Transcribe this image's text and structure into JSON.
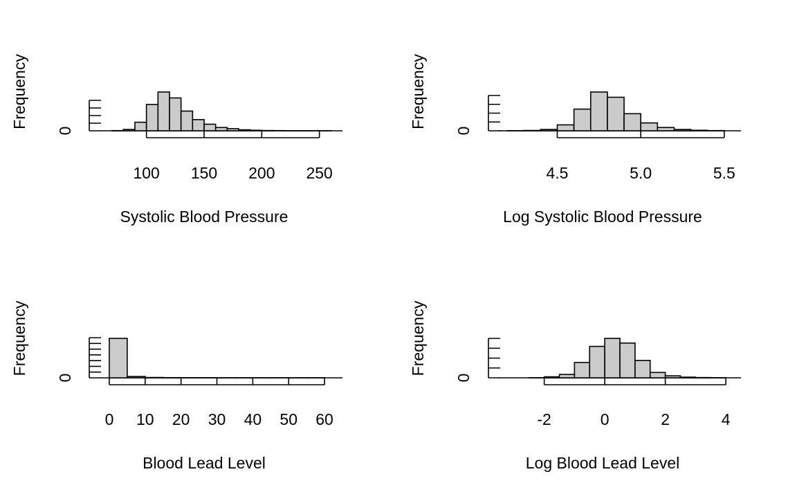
{
  "colors": {
    "bar_fill": "#cbcbcb",
    "bar_stroke": "#000000",
    "background": "#ffffff"
  },
  "chart_data": [
    {
      "type": "bar",
      "xlabel": "Systolic Blood Pressure",
      "ylabel": "Frequency",
      "xlim": [
        60,
        270
      ],
      "ylim": [
        0,
        60
      ],
      "x_ticks": [
        100,
        150,
        200,
        250
      ],
      "x_tick_labels": [
        "100",
        "150",
        "200",
        "250"
      ],
      "y_tick_labels": [
        "0"
      ],
      "y_minor_ticks": 4,
      "bins": [
        {
          "x0": 70,
          "x1": 80,
          "count": 0.3
        },
        {
          "x0": 80,
          "x1": 90,
          "count": 2
        },
        {
          "x0": 90,
          "x1": 100,
          "count": 13
        },
        {
          "x0": 100,
          "x1": 110,
          "count": 40
        },
        {
          "x0": 110,
          "x1": 120,
          "count": 59
        },
        {
          "x0": 120,
          "x1": 130,
          "count": 50
        },
        {
          "x0": 130,
          "x1": 140,
          "count": 30
        },
        {
          "x0": 140,
          "x1": 150,
          "count": 17
        },
        {
          "x0": 150,
          "x1": 160,
          "count": 10
        },
        {
          "x0": 160,
          "x1": 170,
          "count": 5
        },
        {
          "x0": 170,
          "x1": 180,
          "count": 3.2
        },
        {
          "x0": 180,
          "x1": 190,
          "count": 1.5
        },
        {
          "x0": 190,
          "x1": 200,
          "count": 0.8
        },
        {
          "x0": 200,
          "x1": 210,
          "count": 0.4
        },
        {
          "x0": 210,
          "x1": 220,
          "count": 0.3
        },
        {
          "x0": 220,
          "x1": 230,
          "count": 0.2
        },
        {
          "x0": 230,
          "x1": 240,
          "count": 0.2
        },
        {
          "x0": 240,
          "x1": 250,
          "count": 0.1
        },
        {
          "x0": 250,
          "x1": 260,
          "count": 0.1
        }
      ]
    },
    {
      "type": "bar",
      "xlabel": "Log Systolic Blood Pressure",
      "ylabel": "Frequency",
      "xlim": [
        4.15,
        5.6
      ],
      "ylim": [
        0,
        60
      ],
      "x_ticks": [
        4.5,
        5.0,
        5.5
      ],
      "x_tick_labels": [
        "4.5",
        "5.0",
        "5.5"
      ],
      "y_tick_labels": [
        "0"
      ],
      "y_minor_ticks": 4,
      "bins": [
        {
          "x0": 4.2,
          "x1": 4.3,
          "count": 0.2
        },
        {
          "x0": 4.3,
          "x1": 4.4,
          "count": 0.5
        },
        {
          "x0": 4.4,
          "x1": 4.5,
          "count": 2
        },
        {
          "x0": 4.5,
          "x1": 4.6,
          "count": 9
        },
        {
          "x0": 4.6,
          "x1": 4.7,
          "count": 33
        },
        {
          "x0": 4.7,
          "x1": 4.8,
          "count": 59
        },
        {
          "x0": 4.8,
          "x1": 4.9,
          "count": 51
        },
        {
          "x0": 4.9,
          "x1": 5.0,
          "count": 26
        },
        {
          "x0": 5.0,
          "x1": 5.1,
          "count": 12
        },
        {
          "x0": 5.1,
          "x1": 5.2,
          "count": 5
        },
        {
          "x0": 5.2,
          "x1": 5.3,
          "count": 2
        },
        {
          "x0": 5.3,
          "x1": 5.4,
          "count": 0.8
        },
        {
          "x0": 5.4,
          "x1": 5.5,
          "count": 0.3
        }
      ]
    },
    {
      "type": "bar",
      "xlabel": "Blood Lead Level",
      "ylabel": "Frequency",
      "xlim": [
        -2.5,
        65
      ],
      "ylim": [
        0,
        60
      ],
      "x_ticks": [
        0,
        10,
        20,
        30,
        40,
        50,
        60
      ],
      "x_tick_labels": [
        "0",
        "10",
        "20",
        "30",
        "40",
        "50",
        "60"
      ],
      "y_tick_labels": [
        "0"
      ],
      "y_minor_ticks": 7,
      "bins": [
        {
          "x0": 0,
          "x1": 5,
          "count": 59
        },
        {
          "x0": 5,
          "x1": 10,
          "count": 2
        },
        {
          "x0": 10,
          "x1": 15,
          "count": 0.5
        },
        {
          "x0": 15,
          "x1": 20,
          "count": 0.3
        },
        {
          "x0": 20,
          "x1": 25,
          "count": 0.2
        },
        {
          "x0": 25,
          "x1": 30,
          "count": 0.2
        },
        {
          "x0": 30,
          "x1": 35,
          "count": 0.1
        },
        {
          "x0": 35,
          "x1": 40,
          "count": 0.1
        },
        {
          "x0": 40,
          "x1": 45,
          "count": 0.1
        },
        {
          "x0": 45,
          "x1": 50,
          "count": 0.1
        },
        {
          "x0": 50,
          "x1": 55,
          "count": 0.1
        },
        {
          "x0": 55,
          "x1": 60,
          "count": 0.1
        }
      ]
    },
    {
      "type": "bar",
      "xlabel": "Log Blood Lead Level",
      "ylabel": "Frequency",
      "xlim": [
        -3.5,
        4.5
      ],
      "ylim": [
        0,
        60
      ],
      "x_ticks": [
        -2,
        0,
        2,
        4
      ],
      "x_tick_labels": [
        "-2",
        "0",
        "2",
        "4"
      ],
      "y_tick_labels": [
        "0"
      ],
      "y_minor_ticks": 4,
      "bins": [
        {
          "x0": -2.5,
          "x1": -2.0,
          "count": 0.2
        },
        {
          "x0": -2.0,
          "x1": -1.5,
          "count": 1.5
        },
        {
          "x0": -1.5,
          "x1": -1.0,
          "count": 5
        },
        {
          "x0": -1.0,
          "x1": -0.5,
          "count": 23
        },
        {
          "x0": -0.5,
          "x1": 0.0,
          "count": 47
        },
        {
          "x0": 0.0,
          "x1": 0.5,
          "count": 59
        },
        {
          "x0": 0.5,
          "x1": 1.0,
          "count": 52
        },
        {
          "x0": 1.0,
          "x1": 1.5,
          "count": 26
        },
        {
          "x0": 1.5,
          "x1": 2.0,
          "count": 8
        },
        {
          "x0": 2.0,
          "x1": 2.5,
          "count": 3
        },
        {
          "x0": 2.5,
          "x1": 3.0,
          "count": 1
        },
        {
          "x0": 3.0,
          "x1": 3.5,
          "count": 0.4
        },
        {
          "x0": 3.5,
          "x1": 4.0,
          "count": 0.2
        }
      ]
    }
  ]
}
